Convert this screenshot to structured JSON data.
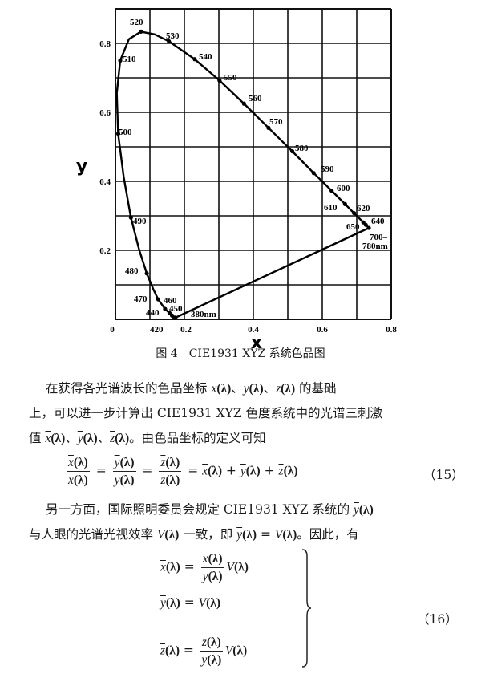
{
  "chart_data": {
    "type": "line",
    "xlabel": "x",
    "ylabel": "y",
    "xlim": [
      0,
      0.8
    ],
    "ylim": [
      0,
      0.9
    ],
    "grid": true,
    "x_ticks": [
      "0",
      "0.2",
      "0.4",
      "0.6",
      "0.8"
    ],
    "y_ticks": [
      "0.2",
      "0.4",
      "0.6",
      "0.8"
    ],
    "spectral_locus": [
      {
        "nm": 380,
        "x": 0.174,
        "y": 0.005,
        "label": "380nm"
      },
      {
        "nm": 420,
        "x": 0.171,
        "y": 0.005,
        "label": "420"
      },
      {
        "nm": 440,
        "x": 0.164,
        "y": 0.011,
        "label": "440"
      },
      {
        "nm": 450,
        "x": 0.157,
        "y": 0.018,
        "label": "450"
      },
      {
        "nm": 460,
        "x": 0.144,
        "y": 0.03,
        "label": "460"
      },
      {
        "nm": 470,
        "x": 0.124,
        "y": 0.058,
        "label": "470"
      },
      {
        "nm": 475,
        "x": 0.11,
        "y": 0.087,
        "label": ""
      },
      {
        "nm": 480,
        "x": 0.091,
        "y": 0.133,
        "label": "480"
      },
      {
        "nm": 485,
        "x": 0.069,
        "y": 0.201,
        "label": ""
      },
      {
        "nm": 490,
        "x": 0.045,
        "y": 0.295,
        "label": "490"
      },
      {
        "nm": 495,
        "x": 0.024,
        "y": 0.413,
        "label": ""
      },
      {
        "nm": 500,
        "x": 0.008,
        "y": 0.538,
        "label": "500"
      },
      {
        "nm": 505,
        "x": 0.004,
        "y": 0.655,
        "label": ""
      },
      {
        "nm": 510,
        "x": 0.014,
        "y": 0.75,
        "label": "510"
      },
      {
        "nm": 515,
        "x": 0.039,
        "y": 0.812,
        "label": ""
      },
      {
        "nm": 520,
        "x": 0.074,
        "y": 0.834,
        "label": "520"
      },
      {
        "nm": 525,
        "x": 0.114,
        "y": 0.826,
        "label": ""
      },
      {
        "nm": 530,
        "x": 0.155,
        "y": 0.806,
        "label": "530"
      },
      {
        "nm": 540,
        "x": 0.23,
        "y": 0.754,
        "label": "540"
      },
      {
        "nm": 550,
        "x": 0.302,
        "y": 0.692,
        "label": "550"
      },
      {
        "nm": 560,
        "x": 0.373,
        "y": 0.625,
        "label": "560"
      },
      {
        "nm": 570,
        "x": 0.444,
        "y": 0.555,
        "label": "570"
      },
      {
        "nm": 580,
        "x": 0.513,
        "y": 0.487,
        "label": "580"
      },
      {
        "nm": 590,
        "x": 0.575,
        "y": 0.424,
        "label": "590"
      },
      {
        "nm": 600,
        "x": 0.627,
        "y": 0.373,
        "label": "600"
      },
      {
        "nm": 610,
        "x": 0.666,
        "y": 0.334,
        "label": "610"
      },
      {
        "nm": 620,
        "x": 0.692,
        "y": 0.308,
        "label": "620"
      },
      {
        "nm": 640,
        "x": 0.719,
        "y": 0.281,
        "label": "640"
      },
      {
        "nm": 650,
        "x": 0.726,
        "y": 0.274,
        "label": "650"
      },
      {
        "nm": 700,
        "x": 0.735,
        "y": 0.265,
        "label": "700–"
      }
    ],
    "extra_label": "780nm"
  },
  "caption": "图 4　CIE1931 XYZ 系统色品图",
  "paragraph1": [
    [
      {
        "t": "在获得各光谱波长的色品坐标 "
      },
      {
        "t": "x",
        "c": "it"
      },
      {
        "t": "(λ)",
        "c": "lam"
      },
      {
        "t": "、"
      },
      {
        "t": "y",
        "c": "it"
      },
      {
        "t": "(λ)",
        "c": "lam"
      },
      {
        "t": "、"
      },
      {
        "t": "z",
        "c": "it"
      },
      {
        "t": "(λ)",
        "c": "lam"
      },
      {
        "t": " 的基础"
      }
    ],
    [
      {
        "t": "上，可以进一步计算出 CIE1931 XYZ 色度系统中的光谱三刺激"
      }
    ],
    [
      {
        "t": "值 "
      },
      {
        "t": "x",
        "c": "ov"
      },
      {
        "t": "(λ)",
        "c": "lam"
      },
      {
        "t": "、"
      },
      {
        "t": "y",
        "c": "ov"
      },
      {
        "t": "(λ)",
        "c": "lam"
      },
      {
        "t": "、"
      },
      {
        "t": "z",
        "c": "ov"
      },
      {
        "t": "(λ)",
        "c": "lam"
      },
      {
        "t": "。由色品坐标的定义可知"
      }
    ]
  ],
  "eq15": {
    "fractions": [
      {
        "num": "x",
        "den": "x"
      },
      {
        "num": "y",
        "den": "y"
      },
      {
        "num": "z",
        "den": "z"
      }
    ],
    "lambda": "(λ)",
    "eq": " = ",
    "rhs": [
      {
        "t": "x",
        "c": "ov"
      },
      {
        "t": "(λ)",
        "c": "lam"
      },
      {
        "t": " + "
      },
      {
        "t": "y",
        "c": "ov"
      },
      {
        "t": "(λ)",
        "c": "lam"
      },
      {
        "t": " + "
      },
      {
        "t": "z",
        "c": "ov"
      },
      {
        "t": "(λ)",
        "c": "lam"
      }
    ],
    "number": "（15）"
  },
  "paragraph2": [
    [
      {
        "t": "另一方面，国际照明委员会规定 CIE1931 XYZ 系统的 "
      },
      {
        "t": "y",
        "c": "ov"
      },
      {
        "t": "(λ)",
        "c": "lam"
      }
    ],
    [
      {
        "t": "与人眼的光谱光视效率 "
      },
      {
        "t": "V",
        "c": "it"
      },
      {
        "t": "(λ)",
        "c": "lam"
      },
      {
        "t": " 一致，即 "
      },
      {
        "t": "y",
        "c": "ov"
      },
      {
        "t": "(λ)",
        "c": "lam"
      },
      {
        "t": " = "
      },
      {
        "t": "V",
        "c": "it"
      },
      {
        "t": "(λ)",
        "c": "lam"
      },
      {
        "t": "。因此，有"
      }
    ]
  ],
  "eq16": {
    "rows": [
      {
        "lhs": "x",
        "num": "x",
        "tail": "V"
      },
      {
        "lhs": "y",
        "tail": "V"
      },
      {
        "lhs": "z",
        "num": "z",
        "tail": "V"
      }
    ],
    "den": "y",
    "number": "（16）"
  }
}
